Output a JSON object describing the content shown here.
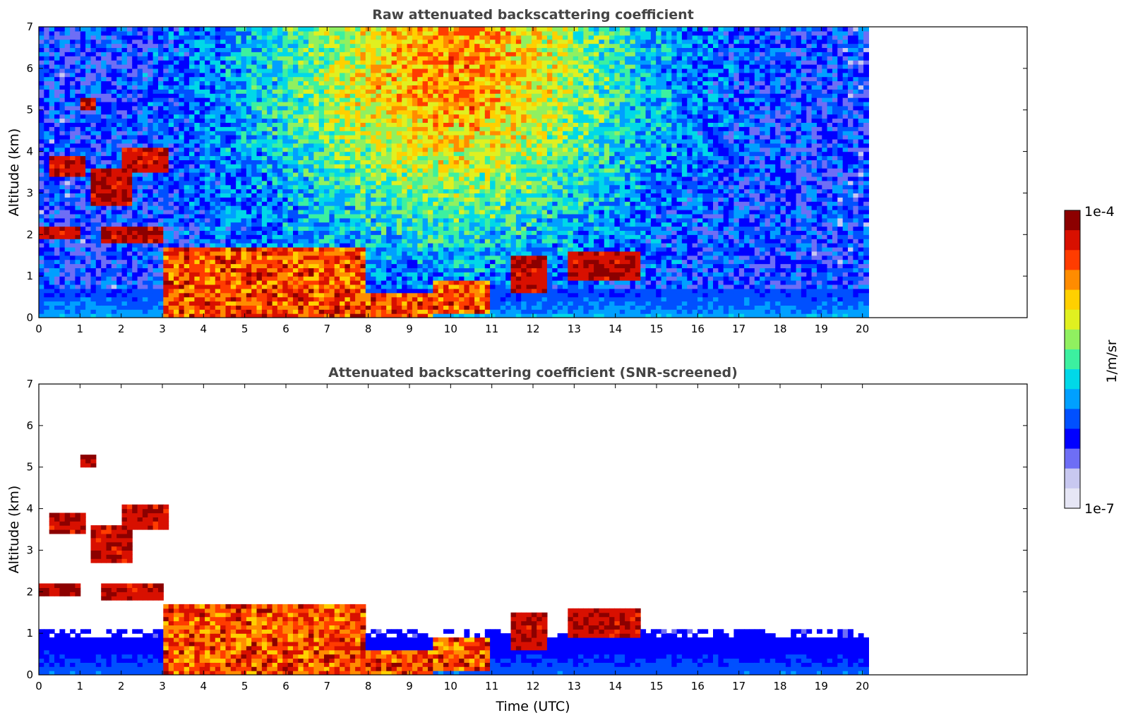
{
  "colormap": {
    "name": "jet",
    "stops": [
      "#e6e6f5",
      "#c8c8f0",
      "#6e6ef5",
      "#0000ff",
      "#0050ff",
      "#00a0ff",
      "#00d8e8",
      "#3cf0a0",
      "#90f060",
      "#e0f020",
      "#ffd000",
      "#ff8c00",
      "#ff3c00",
      "#d81000",
      "#8c0000"
    ]
  },
  "colorbar": {
    "top_label": "1e-4",
    "bottom_label": "1e-7",
    "unit_label": "1/m/sr",
    "log_range": [
      -7,
      -4
    ]
  },
  "chart_data": [
    {
      "type": "heatmap",
      "title": "Raw attenuated backscattering coefficient",
      "xlabel": "",
      "ylabel": "Altitude (km)",
      "xlim": [
        0,
        24
      ],
      "ylim": [
        0,
        7
      ],
      "data_extent_x": [
        0,
        20.15
      ],
      "xticks": [
        "0",
        "1",
        "2",
        "3",
        "4",
        "5",
        "6",
        "7",
        "8",
        "9",
        "10",
        "11",
        "12",
        "13",
        "14",
        "15",
        "16",
        "17",
        "18",
        "19",
        "20"
      ],
      "yticks": [
        "0",
        "1",
        "2",
        "3",
        "4",
        "5",
        "6",
        "7"
      ],
      "screened": false,
      "cloud_layers": [
        {
          "t": [
            0.0,
            1.0
          ],
          "alt": [
            1.9,
            2.2
          ]
        },
        {
          "t": [
            0.3,
            1.1
          ],
          "alt": [
            3.4,
            3.9
          ]
        },
        {
          "t": [
            1.0,
            1.4
          ],
          "alt": [
            5.0,
            5.3
          ]
        },
        {
          "t": [
            1.3,
            2.3
          ],
          "alt": [
            2.7,
            3.6
          ]
        },
        {
          "t": [
            2.0,
            3.2
          ],
          "alt": [
            3.5,
            4.1
          ]
        },
        {
          "t": [
            1.5,
            3.0
          ],
          "alt": [
            1.8,
            2.2
          ]
        },
        {
          "t": [
            11.5,
            12.3
          ],
          "alt": [
            0.6,
            1.5
          ]
        },
        {
          "t": [
            12.8,
            14.6
          ],
          "alt": [
            0.9,
            1.6
          ]
        }
      ],
      "boundary_layer": [
        {
          "t": [
            3.0,
            7.9
          ],
          "alt": [
            0.05,
            1.7
          ]
        },
        {
          "t": [
            7.0,
            9.6
          ],
          "alt": [
            0.05,
            0.6
          ]
        },
        {
          "t": [
            9.6,
            11.0
          ],
          "alt": [
            0.1,
            0.9
          ]
        }
      ]
    },
    {
      "type": "heatmap",
      "title": "Attenuated backscattering coefficient (SNR-screened)",
      "xlabel": "Time (UTC)",
      "ylabel": "Altitude (km)",
      "xlim": [
        0,
        24
      ],
      "ylim": [
        0,
        7
      ],
      "data_extent_x": [
        0,
        20.15
      ],
      "xticks": [
        "0",
        "1",
        "2",
        "3",
        "4",
        "5",
        "6",
        "7",
        "8",
        "9",
        "10",
        "11",
        "12",
        "13",
        "14",
        "15",
        "16",
        "17",
        "18",
        "19",
        "20"
      ],
      "yticks": [
        "0",
        "1",
        "2",
        "3",
        "4",
        "5",
        "6",
        "7"
      ],
      "screened": true
    }
  ]
}
